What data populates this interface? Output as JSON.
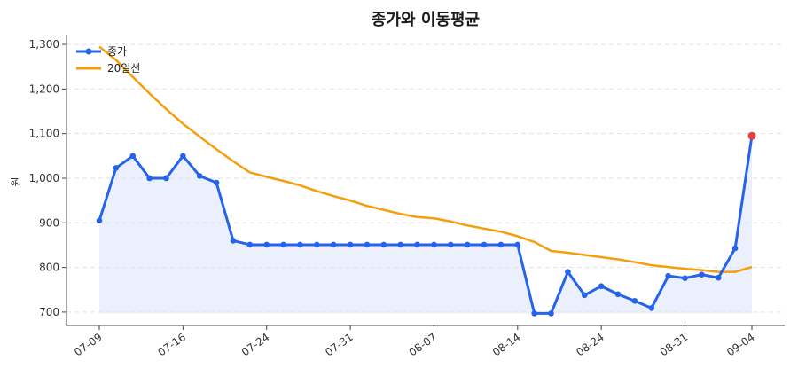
{
  "chart_data": {
    "type": "line",
    "title": "종가와 이동평균",
    "xlabel": "",
    "ylabel": "원",
    "ylim": [
      670,
      1320
    ],
    "yticks": [
      700,
      800,
      900,
      1000,
      1100,
      1200,
      1300
    ],
    "yticklabels": [
      "700",
      "800",
      "900",
      "1,000",
      "1,100",
      "1,200",
      "1,300"
    ],
    "xticklabels": [
      "07-09",
      "07-16",
      "07-24",
      "07-31",
      "08-07",
      "08-14",
      "08-24",
      "08-31",
      "09-04"
    ],
    "xtick_positions": [
      0,
      5,
      10,
      15,
      20,
      25,
      30,
      35,
      39
    ],
    "grid": "y-dashed",
    "legend_position": "top-left",
    "series": [
      {
        "name": "종가",
        "color": "#2563eb",
        "marker": "circle",
        "fill_color": "#dbe4fa",
        "values": [
          905,
          1023,
          1050,
          1000,
          1000,
          1050,
          1005,
          990,
          860,
          851,
          851,
          851,
          851,
          851,
          851,
          851,
          851,
          851,
          851,
          851,
          851,
          851,
          851,
          851,
          851,
          851,
          697,
          697,
          790,
          738,
          758,
          740,
          725,
          709,
          781,
          776,
          784,
          777,
          843,
          1095
        ],
        "last_point_color": "#e53e3e"
      },
      {
        "name": "20일선",
        "color": "#f59e0b",
        "values": [
          1295,
          1265,
          1227,
          1190,
          1155,
          1122,
          1093,
          1065,
          1038,
          1013,
          1003,
          994,
          984,
          971,
          960,
          950,
          938,
          929,
          920,
          913,
          910,
          903,
          894,
          887,
          880,
          870,
          857,
          837,
          833,
          828,
          823,
          818,
          812,
          805,
          801,
          797,
          794,
          790,
          790,
          801
        ]
      }
    ]
  }
}
